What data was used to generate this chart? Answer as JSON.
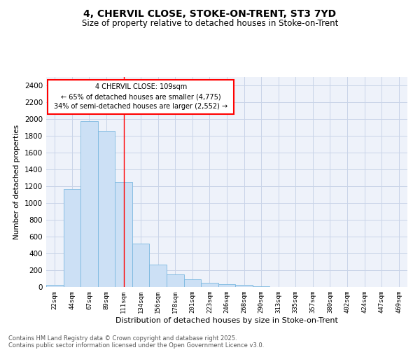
{
  "title1": "4, CHERVIL CLOSE, STOKE-ON-TRENT, ST3 7YD",
  "title2": "Size of property relative to detached houses in Stoke-on-Trent",
  "xlabel": "Distribution of detached houses by size in Stoke-on-Trent",
  "ylabel": "Number of detached properties",
  "bins": [
    "22sqm",
    "44sqm",
    "67sqm",
    "89sqm",
    "111sqm",
    "134sqm",
    "156sqm",
    "178sqm",
    "201sqm",
    "223sqm",
    "246sqm",
    "268sqm",
    "290sqm",
    "313sqm",
    "335sqm",
    "357sqm",
    "380sqm",
    "402sqm",
    "424sqm",
    "447sqm",
    "469sqm"
  ],
  "values": [
    25,
    1170,
    1975,
    1855,
    1250,
    520,
    270,
    150,
    90,
    50,
    35,
    25,
    5,
    3,
    2,
    2,
    1,
    1,
    0,
    0,
    0
  ],
  "bar_color": "#cce0f5",
  "bar_edge_color": "#7ab8e0",
  "red_line_x": 4.0,
  "annotation_line1": "4 CHERVIL CLOSE: 109sqm",
  "annotation_line2": "← 65% of detached houses are smaller (4,775)",
  "annotation_line3": "34% of semi-detached houses are larger (2,552) →",
  "annotation_box_color": "white",
  "annotation_box_edge": "red",
  "ylim": [
    0,
    2500
  ],
  "yticks": [
    0,
    200,
    400,
    600,
    800,
    1000,
    1200,
    1400,
    1600,
    1800,
    2000,
    2200,
    2400
  ],
  "bg_color": "#eef2fa",
  "grid_color": "#c8d4e8",
  "footer1": "Contains HM Land Registry data © Crown copyright and database right 2025.",
  "footer2": "Contains public sector information licensed under the Open Government Licence v3.0."
}
